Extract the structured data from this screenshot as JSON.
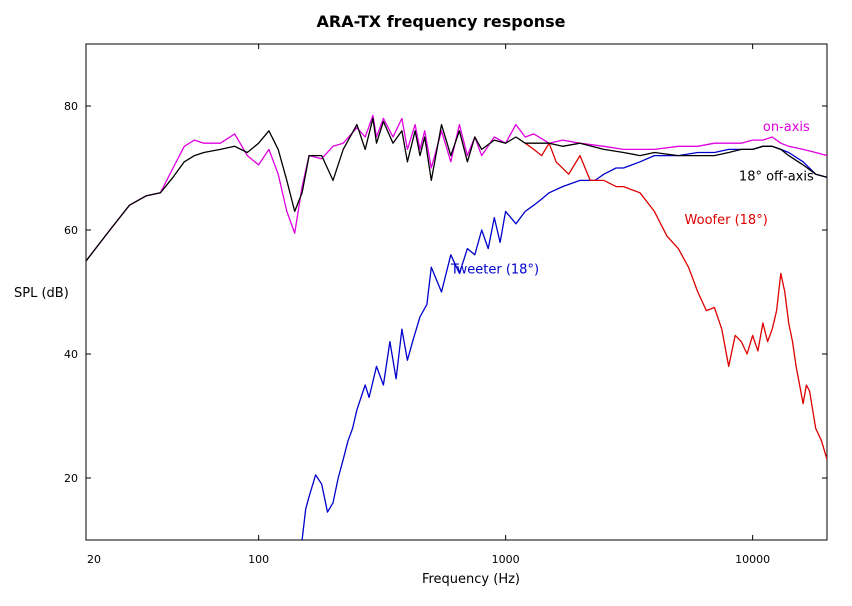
{
  "chart_data": {
    "type": "line",
    "title": "ARA-TX frequency response",
    "xlabel": "Frequency (Hz)",
    "ylabel": "SPL (dB)",
    "xscale": "log",
    "xlim": [
      20,
      20000
    ],
    "ylim": [
      10,
      90
    ],
    "xticks": [
      20,
      100,
      1000,
      10000
    ],
    "xtick_labels": [
      "20",
      "100",
      "1000",
      "10000"
    ],
    "yticks": [
      20,
      40,
      60,
      80
    ],
    "ytick_labels": [
      "20",
      "40",
      "60",
      "80"
    ],
    "grid": false,
    "legend": "inline labels",
    "series": [
      {
        "name": "on-axis",
        "color": "#e000e0",
        "x": [
          20,
          25,
          30,
          35,
          40,
          45,
          50,
          55,
          60,
          70,
          80,
          90,
          100,
          110,
          120,
          130,
          140,
          150,
          160,
          180,
          200,
          220,
          250,
          270,
          290,
          300,
          320,
          350,
          380,
          400,
          430,
          450,
          470,
          500,
          550,
          600,
          650,
          700,
          750,
          800,
          900,
          1000,
          1100,
          1200,
          1300,
          1500,
          1700,
          2000,
          2500,
          3000,
          3500,
          4000,
          5000,
          6000,
          7000,
          8000,
          9000,
          10000,
          11000,
          12000,
          13000,
          14000,
          16000,
          18000,
          20000
        ],
        "y": [
          55,
          60,
          64,
          65.5,
          66,
          70,
          73.5,
          74.5,
          74,
          74,
          75.5,
          72,
          70.5,
          73,
          69,
          63,
          59.5,
          67,
          72,
          71.5,
          73.5,
          74,
          76.5,
          75,
          78.5,
          75,
          78,
          75,
          78,
          73,
          77,
          73,
          76,
          70,
          76,
          71,
          77,
          72,
          75,
          72,
          75,
          74,
          77,
          75,
          75.5,
          74,
          74.5,
          74,
          73.5,
          73,
          73,
          73,
          73.5,
          73.5,
          74,
          74,
          74,
          74.5,
          74.5,
          75,
          74,
          73.5,
          73,
          72.5,
          72
        ]
      },
      {
        "name": "18° off-axis",
        "color": "#000000",
        "x": [
          20,
          25,
          30,
          35,
          40,
          45,
          50,
          55,
          60,
          70,
          80,
          90,
          100,
          110,
          120,
          130,
          140,
          150,
          160,
          180,
          200,
          220,
          250,
          270,
          290,
          300,
          320,
          350,
          380,
          400,
          430,
          450,
          470,
          500,
          550,
          600,
          650,
          700,
          750,
          800,
          900,
          1000,
          1100,
          1200,
          1300,
          1500,
          1700,
          2000,
          2500,
          3000,
          3500,
          4000,
          5000,
          6000,
          7000,
          8000,
          9000,
          10000,
          11000,
          12000,
          13000,
          14000,
          16000,
          18000,
          20000
        ],
        "y": [
          55,
          60,
          64,
          65.5,
          66,
          68.5,
          71,
          72,
          72.5,
          73,
          73.5,
          72.5,
          74,
          76,
          73,
          68,
          63,
          66,
          72,
          72,
          68,
          73,
          77,
          73,
          78,
          74,
          77.5,
          74,
          76,
          71,
          76,
          72,
          75,
          68,
          77,
          72,
          76,
          71,
          75,
          73,
          74.5,
          74,
          75,
          74,
          74,
          74,
          73.5,
          74,
          73,
          72.5,
          72,
          72.5,
          72,
          72,
          72,
          72.5,
          73,
          73,
          73.5,
          73.5,
          73,
          72,
          70.5,
          69,
          68.5
        ]
      },
      {
        "name": "Woofer (18°)",
        "color": "#dd0000",
        "x": [
          1200,
          1300,
          1400,
          1500,
          1600,
          1800,
          2000,
          2200,
          2500,
          2800,
          3000,
          3500,
          4000,
          4500,
          5000,
          5500,
          6000,
          6500,
          7000,
          7500,
          8000,
          8500,
          9000,
          9500,
          10000,
          10500,
          11000,
          11500,
          12000,
          12500,
          13000,
          13500,
          14000,
          14500,
          15000,
          16000,
          16500,
          17000,
          18000,
          19000,
          20000
        ],
        "y": [
          74,
          73,
          72,
          74,
          71,
          69,
          72,
          68,
          68,
          67,
          67,
          66,
          63,
          59,
          57,
          54,
          50,
          47,
          47.5,
          44,
          38,
          43,
          42,
          40,
          43,
          40.5,
          45,
          42,
          44,
          47,
          53,
          50,
          45,
          42,
          38,
          32,
          35,
          34,
          28,
          26,
          23
        ]
      },
      {
        "name": "Tweeter (18°)",
        "color": "#0000cc",
        "x": [
          150,
          155,
          160,
          170,
          180,
          190,
          200,
          210,
          220,
          230,
          240,
          250,
          270,
          280,
          300,
          320,
          340,
          360,
          380,
          400,
          420,
          450,
          480,
          500,
          550,
          600,
          650,
          700,
          750,
          800,
          850,
          900,
          950,
          1000,
          1100,
          1200,
          1300,
          1400,
          1500,
          1700,
          2000,
          2300,
          2500,
          2800,
          3000,
          3500,
          4000,
          5000,
          6000,
          7000,
          8000,
          9000,
          10000,
          11000,
          12000,
          13000,
          14000,
          16000,
          18000,
          20000
        ],
        "y": [
          10,
          15,
          17,
          20.5,
          19,
          14.5,
          16,
          20,
          23,
          26,
          28,
          31,
          35,
          33,
          38,
          35,
          42,
          36,
          44,
          39,
          42,
          46,
          48,
          54,
          50,
          56,
          53,
          57,
          56,
          60,
          57,
          62,
          58,
          63,
          61,
          63,
          64,
          65,
          66,
          67,
          68,
          68,
          69,
          70,
          70,
          71,
          72,
          72,
          72.5,
          72.5,
          73,
          73,
          73,
          73.5,
          73.5,
          73,
          72.5,
          71,
          69,
          68.5
        ]
      }
    ],
    "annotations": [
      {
        "text": "on-axis",
        "series": "on-axis",
        "x": 11000,
        "y": 76
      },
      {
        "text": "18° off-axis",
        "series": "18° off-axis",
        "x": 8800,
        "y": 68
      },
      {
        "text": "Woofer (18°)",
        "series": "Woofer (18°)",
        "x": 5300,
        "y": 61
      },
      {
        "text": "Tweeter (18°)",
        "series": "Tweeter (18°)",
        "x": 600,
        "y": 53
      }
    ]
  }
}
